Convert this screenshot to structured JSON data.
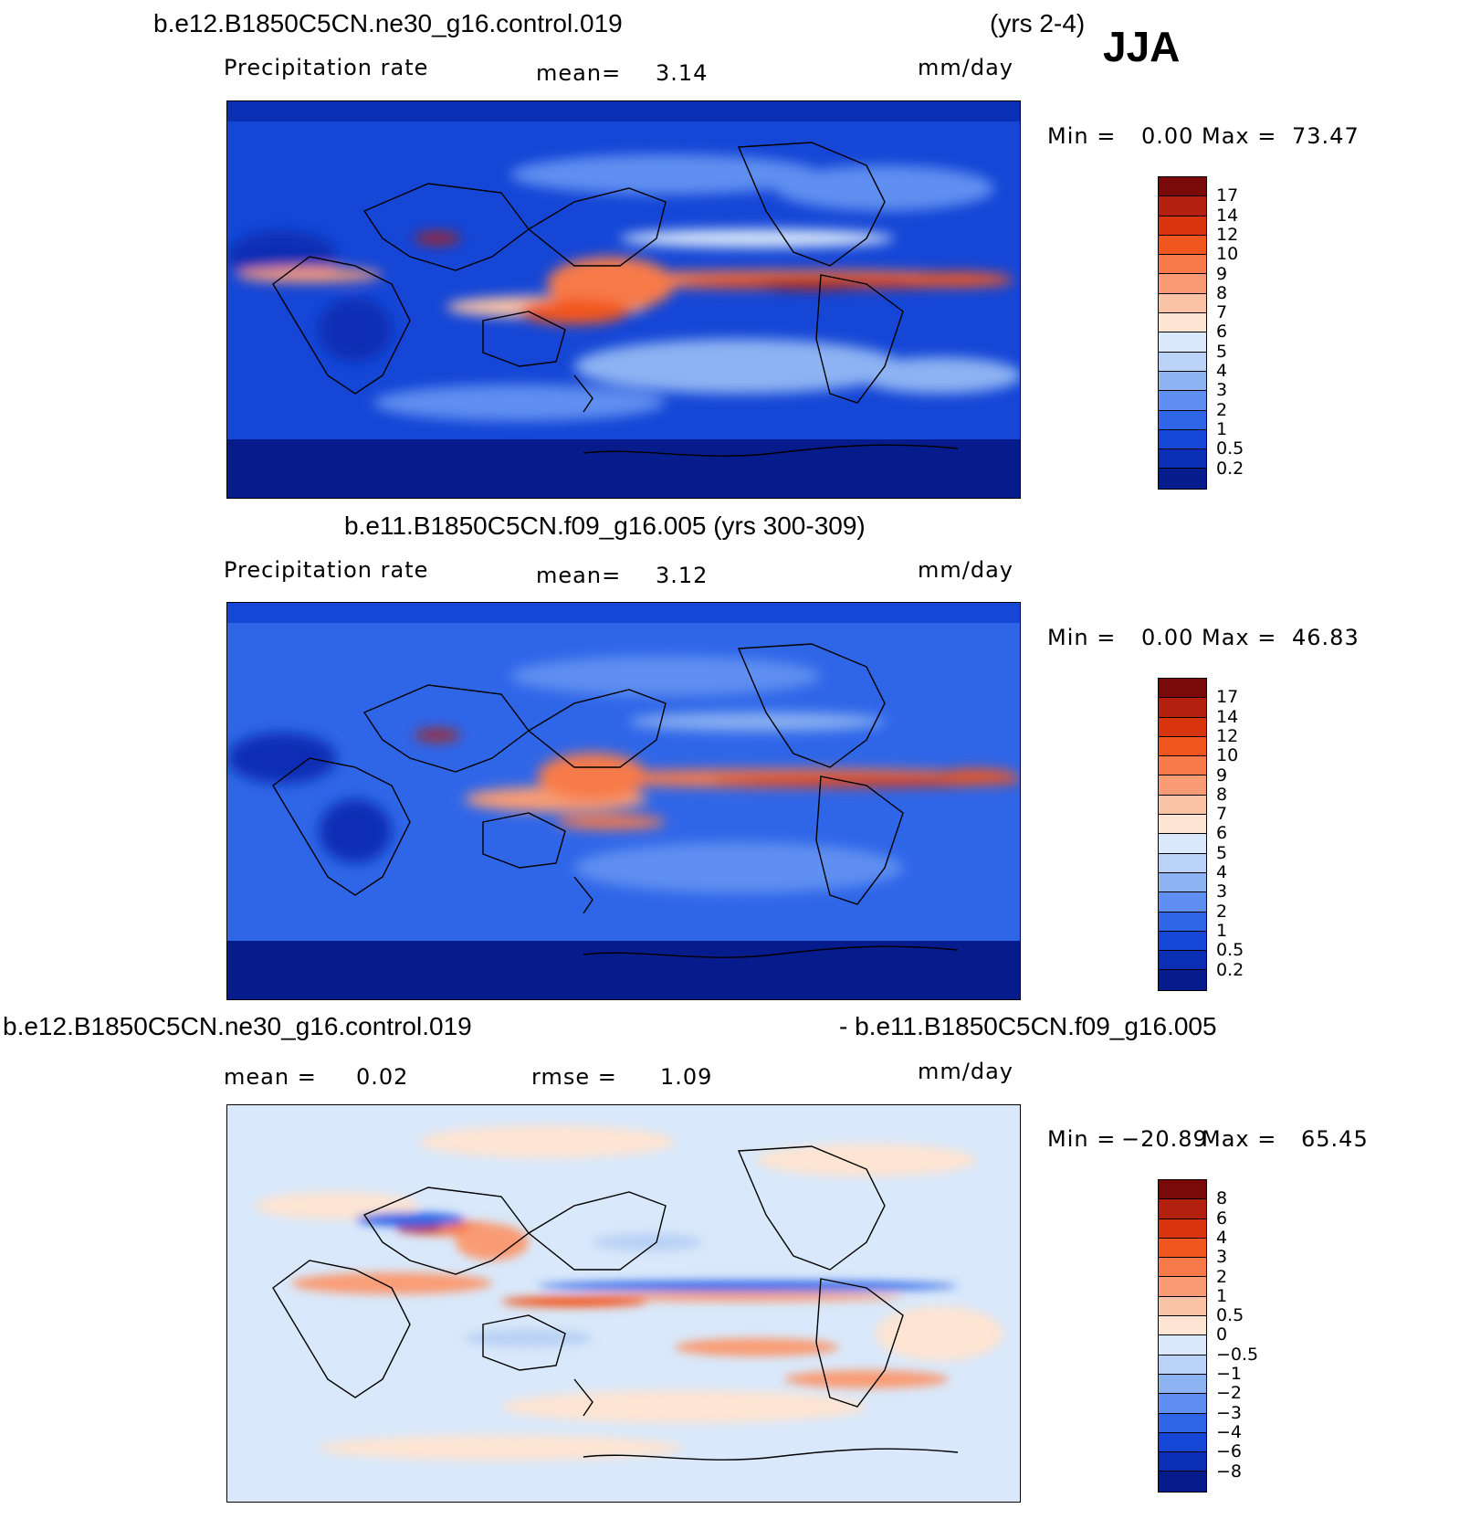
{
  "season": "JJA",
  "panels": [
    {
      "id": "top",
      "case_title": "b.e12.B1850C5CN.ne30_g16.control.019",
      "years": "(yrs 2-4)",
      "variable": "Precipitation  rate",
      "stat_label": "mean=",
      "stat_value": "3.14",
      "units": "mm/day",
      "min_label": "Min  =",
      "min_value": "0.00",
      "max_label": "Max  =",
      "max_value": "73.47",
      "levels": [
        "17",
        "14",
        "12",
        "10",
        "9",
        "8",
        "7",
        "6",
        "5",
        "4",
        "3",
        "2",
        "1",
        "0.5",
        "0.2"
      ]
    },
    {
      "id": "middle",
      "case_title": "b.e11.B1850C5CN.f09_g16.005 (yrs 300-309)",
      "variable": "Precipitation  rate",
      "stat_label": "mean=",
      "stat_value": "3.12",
      "units": "mm/day",
      "min_label": "Min  =",
      "min_value": "0.00",
      "max_label": "Max  =",
      "max_value": "46.83",
      "levels": [
        "17",
        "14",
        "12",
        "10",
        "9",
        "8",
        "7",
        "6",
        "5",
        "4",
        "3",
        "2",
        "1",
        "0.5",
        "0.2"
      ]
    },
    {
      "id": "difference",
      "case_title_left": "b.e12.B1850C5CN.ne30_g16.control.019",
      "case_title_right": "- b.e11.B1850C5CN.f09_g16.005",
      "stat_label": "mean  =",
      "stat_value": "0.02",
      "stat2_label": "rmse  =",
      "stat2_value": "1.09",
      "units": "mm/day",
      "min_label": "Min  =",
      "min_value": "−20.89",
      "max_label": "Max  =",
      "max_value": "65.45",
      "levels": [
        "8",
        "6",
        "4",
        "3",
        "2",
        "1",
        "0.5",
        "0",
        "−0.5",
        "−1",
        "−2",
        "−3",
        "−4",
        "−6",
        "−8"
      ]
    }
  ],
  "colorbar": {
    "precip_colors": [
      "#7a0a0a",
      "#b3200e",
      "#d8350f",
      "#f2561f",
      "#f77a4a",
      "#f99c75",
      "#fbc3a6",
      "#fde4d3",
      "#d9e8fa",
      "#b9d2f5",
      "#8db3f2",
      "#5f8ff0",
      "#2f66e8",
      "#1546d6",
      "#0a2fb4",
      "#061b8c"
    ],
    "diff_colors": [
      "#7a0a0a",
      "#b3200e",
      "#d8350f",
      "#f2561f",
      "#f77a4a",
      "#f99c75",
      "#fbc3a6",
      "#fde4d3",
      "#d9e8fa",
      "#b9d2f5",
      "#8db3f2",
      "#5f8ff0",
      "#2f66e8",
      "#1546d6",
      "#0a2fb4",
      "#061b8c"
    ]
  }
}
